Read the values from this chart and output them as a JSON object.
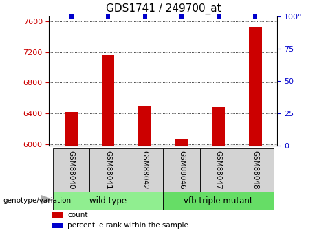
{
  "title": "GDS1741 / 249700_at",
  "samples": [
    "GSM88040",
    "GSM88041",
    "GSM88042",
    "GSM88046",
    "GSM88047",
    "GSM88048"
  ],
  "counts": [
    6420,
    7160,
    6490,
    6060,
    6480,
    7530
  ],
  "percentile_ranks": [
    100,
    100,
    100,
    100,
    100,
    100
  ],
  "groups": [
    {
      "label": "wild type",
      "indices": [
        0,
        1,
        2
      ],
      "color": "#90ee90"
    },
    {
      "label": "vfb triple mutant",
      "indices": [
        3,
        4,
        5
      ],
      "color": "#66dd66"
    }
  ],
  "ylim_left": [
    5980,
    7660
  ],
  "yticks_left": [
    6000,
    6400,
    6800,
    7200,
    7600
  ],
  "ylim_right": [
    0,
    100
  ],
  "yticks_right": [
    0,
    25,
    50,
    75,
    100
  ],
  "bar_color": "#cc0000",
  "dot_color": "#0000cc",
  "left_tick_color": "#cc0000",
  "right_tick_color": "#0000cc",
  "grid_color": "#000000",
  "bg_color": "#ffffff",
  "sample_box_color": "#d3d3d3",
  "legend_items": [
    {
      "color": "#cc0000",
      "label": "count"
    },
    {
      "color": "#0000cc",
      "label": "percentile rank within the sample"
    }
  ],
  "genotype_label": "genotype/variation"
}
